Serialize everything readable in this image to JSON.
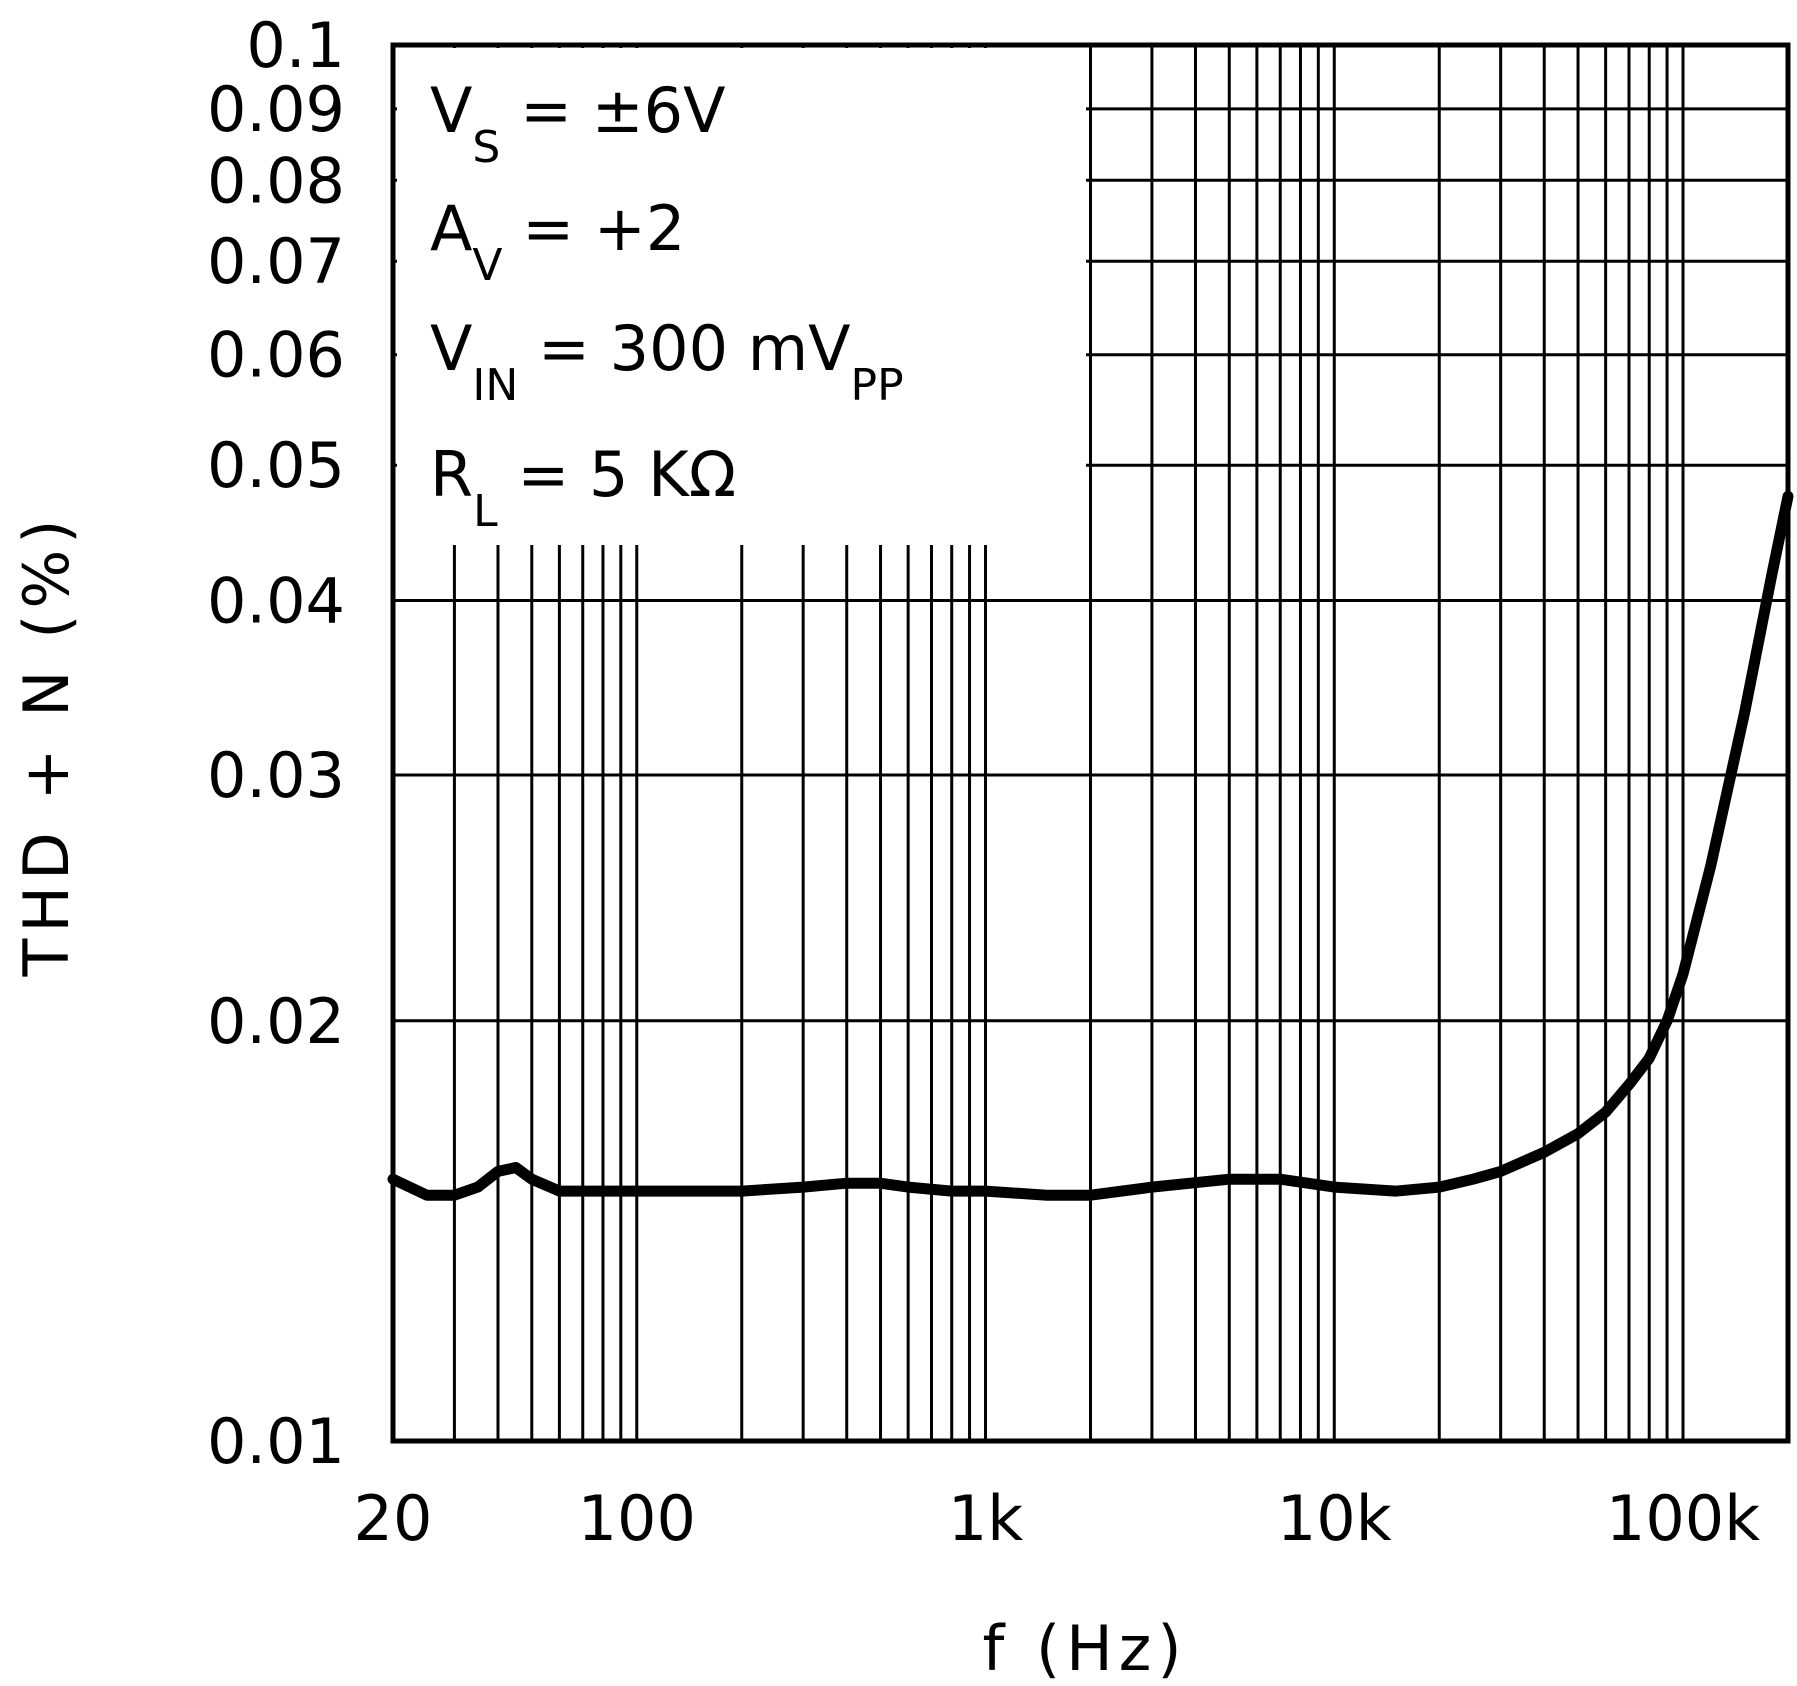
{
  "chart_data": {
    "type": "line",
    "title": "",
    "xlabel": "f (Hz)",
    "ylabel": "THD + N (%)",
    "xscale": "log",
    "yscale": "log",
    "xlim": [
      20,
      200000
    ],
    "ylim": [
      0.01,
      0.1
    ],
    "grid": true,
    "colors": {
      "line": "#000000",
      "grid": "#000000",
      "background": "#ffffff"
    },
    "x_ticks": [
      {
        "value": 20,
        "label": "20"
      },
      {
        "value": 100,
        "label": "100"
      },
      {
        "value": 1000,
        "label": "1k"
      },
      {
        "value": 10000,
        "label": "10k"
      },
      {
        "value": 100000,
        "label": "100k"
      }
    ],
    "y_ticks": [
      {
        "value": 0.01,
        "label": "0.01"
      },
      {
        "value": 0.02,
        "label": "0.02"
      },
      {
        "value": 0.03,
        "label": "0.03"
      },
      {
        "value": 0.04,
        "label": "0.04"
      },
      {
        "value": 0.05,
        "label": "0.05"
      },
      {
        "value": 0.06,
        "label": "0.06"
      },
      {
        "value": 0.07,
        "label": "0.07"
      },
      {
        "value": 0.08,
        "label": "0.08"
      },
      {
        "value": 0.09,
        "label": "0.09"
      },
      {
        "value": 0.1,
        "label": "0.1"
      }
    ],
    "annotations": [
      {
        "main": "V",
        "sub": "S",
        "rest": " =  ±6V"
      },
      {
        "main": "A",
        "sub": "V",
        "rest": " =  +2"
      },
      {
        "main": "V",
        "sub": "IN",
        "rest": " =  300 mV",
        "sub2": "PP"
      },
      {
        "main": "R",
        "sub": "L",
        "rest": " =  5 KΩ"
      }
    ],
    "series": [
      {
        "name": "THD+N",
        "x": [
          20,
          25,
          30,
          35,
          40,
          45,
          50,
          60,
          70,
          80,
          100,
          150,
          200,
          300,
          400,
          500,
          600,
          800,
          1000,
          1500,
          2000,
          3000,
          5000,
          7000,
          10000,
          15000,
          20000,
          25000,
          30000,
          40000,
          50000,
          60000,
          70000,
          80000,
          90000,
          100000,
          120000,
          150000,
          180000,
          200000
        ],
        "y": [
          0.0154,
          0.015,
          0.015,
          0.0152,
          0.0156,
          0.0157,
          0.0154,
          0.0151,
          0.0151,
          0.0151,
          0.0151,
          0.0151,
          0.0151,
          0.0152,
          0.0153,
          0.0153,
          0.0152,
          0.0151,
          0.0151,
          0.015,
          0.015,
          0.0152,
          0.0154,
          0.0154,
          0.0152,
          0.0151,
          0.0152,
          0.0154,
          0.0156,
          0.0161,
          0.0166,
          0.0172,
          0.018,
          0.0188,
          0.02,
          0.0216,
          0.0258,
          0.0332,
          0.0418,
          0.0475
        ]
      }
    ]
  }
}
